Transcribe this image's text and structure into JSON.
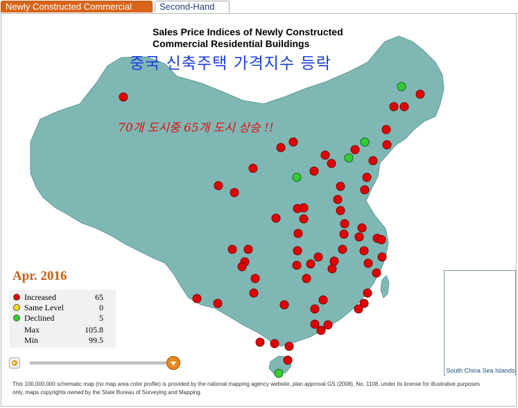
{
  "tabs": [
    {
      "label": "Newly Constructed Commercial",
      "active": true
    },
    {
      "label": "Second-Hand",
      "active": false
    }
  ],
  "title": {
    "line1": "Sales Price Indices of Newly Constructed",
    "line2": "Commercial Residential Buildings"
  },
  "overlay_title_ko": "중국 신축주택 가격지수 등락",
  "overlay_note_ko": "70개  도시중 65개 도시 상승 !!",
  "date": "Apr. 2016",
  "legend": {
    "increased": {
      "label": "Increased",
      "value": "65",
      "color": "#e00000"
    },
    "same": {
      "label": "Same Level",
      "value": "0",
      "color": "#f2e400"
    },
    "declined": {
      "label": "Declined",
      "value": "5",
      "color": "#33cc33"
    },
    "max": {
      "label": "Max",
      "value": "105.8"
    },
    "min": {
      "label": "Min",
      "value": "99.5"
    }
  },
  "inset_label": "South China Sea Islands",
  "footer_text": "This 100,000,000 schematic map (no map area color profile) is provided by the national mapping agency website, plan approval GS (2008), No. 1108, under its license for illustrative purposes only, maps copyrights owned by the State Bureau of Surveying and Mapping.",
  "colors": {
    "land": "#7fb7b4",
    "tab_active": "#d9651a",
    "increased": "#e00000",
    "declined": "#33cc33"
  },
  "icons": {
    "play": "play-icon",
    "slider": "slider-thumb-icon"
  }
}
